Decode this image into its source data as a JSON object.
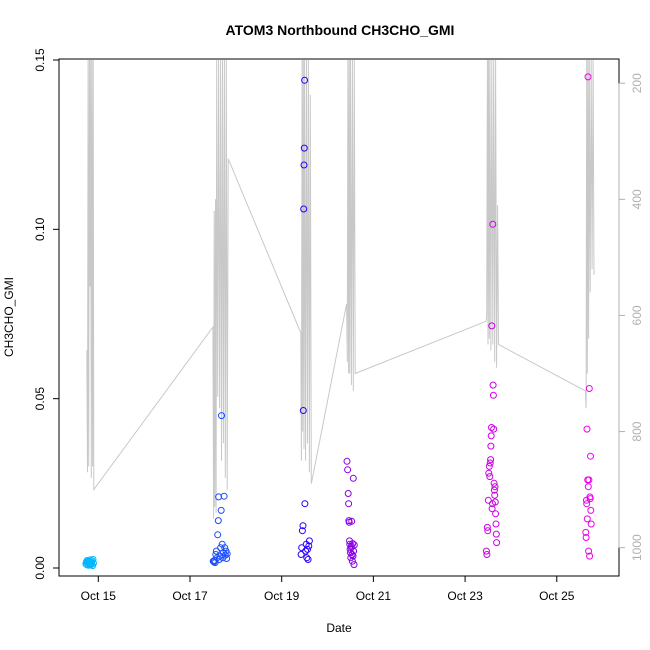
{
  "chart_data": {
    "type": "scatter",
    "title": "ATOM3 Northbound CH3CHO_GMI",
    "xlabel": "Date",
    "ylabel": "CH3CHO_GMI",
    "xlim": [
      "2017-10-14 05:00",
      "2017-10-26 07:00"
    ],
    "ylim": [
      0.0,
      0.15
    ],
    "x_ticks": [
      {
        "label": "Oct 15",
        "value": "2017-10-15"
      },
      {
        "label": "Oct 17",
        "value": "2017-10-17"
      },
      {
        "label": "Oct 19",
        "value": "2017-10-19"
      },
      {
        "label": "Oct 21",
        "value": "2017-10-21"
      },
      {
        "label": "Oct 23",
        "value": "2017-10-23"
      },
      {
        "label": "Oct 25",
        "value": "2017-10-25"
      }
    ],
    "y_ticks": [
      {
        "label": "0.00",
        "value": 0.0
      },
      {
        "label": "0.05",
        "value": 0.05
      },
      {
        "label": "0.10",
        "value": 0.1
      },
      {
        "label": "0.15",
        "value": 0.15
      }
    ],
    "secondary_axis": {
      "position": "right",
      "label": "",
      "reversed": true,
      "range": [
        160,
        1035
      ],
      "ticks": [
        {
          "label": "200",
          "value": 200
        },
        {
          "label": "400",
          "value": 400
        },
        {
          "label": "600",
          "value": 600
        },
        {
          "label": "800",
          "value": 800
        },
        {
          "label": "1000",
          "value": 1000
        }
      ],
      "color": "#b0b0b0"
    },
    "pressure_trace": {
      "color": "#c8c8c8",
      "points": [
        [
          "2017-10-14 18:00",
          660
        ],
        [
          "2017-10-14 18:20",
          870
        ],
        [
          "2017-10-14 18:40",
          160
        ],
        [
          "2017-10-14 19:00",
          860
        ],
        [
          "2017-10-14 19:20",
          160
        ],
        [
          "2017-10-14 19:40",
          550
        ],
        [
          "2017-10-14 20:00",
          160
        ],
        [
          "2017-10-14 20:20",
          880
        ],
        [
          "2017-10-14 20:40",
          160
        ],
        [
          "2017-10-14 21:00",
          860
        ],
        [
          "2017-10-14 21:20",
          160
        ],
        [
          "2017-10-14 21:40",
          900
        ],
        [
          "2017-10-17 12:00",
          620
        ],
        [
          "2017-10-17 12:20",
          950
        ],
        [
          "2017-10-17 12:40",
          420
        ],
        [
          "2017-10-17 13:00",
          930
        ],
        [
          "2017-10-17 13:20",
          400
        ],
        [
          "2017-10-17 13:40",
          940
        ],
        [
          "2017-10-17 14:00",
          160
        ],
        [
          "2017-10-17 14:30",
          740
        ],
        [
          "2017-10-17 15:00",
          160
        ],
        [
          "2017-10-17 15:30",
          760
        ],
        [
          "2017-10-17 16:00",
          160
        ],
        [
          "2017-10-17 16:30",
          850
        ],
        [
          "2017-10-17 17:00",
          160
        ],
        [
          "2017-10-17 17:30",
          820
        ],
        [
          "2017-10-17 18:00",
          160
        ],
        [
          "2017-10-17 18:30",
          880
        ],
        [
          "2017-10-17 19:00",
          160
        ],
        [
          "2017-10-17 19:30",
          900
        ],
        [
          "2017-10-17 20:00",
          330
        ],
        [
          "2017-10-19 10:00",
          630
        ],
        [
          "2017-10-19 10:20",
          850
        ],
        [
          "2017-10-19 10:40",
          160
        ],
        [
          "2017-10-19 11:00",
          800
        ],
        [
          "2017-10-19 11:20",
          160
        ],
        [
          "2017-10-19 11:40",
          830
        ],
        [
          "2017-10-19 12:00",
          160
        ],
        [
          "2017-10-19 12:30",
          850
        ],
        [
          "2017-10-19 13:00",
          160
        ],
        [
          "2017-10-19 13:30",
          820
        ],
        [
          "2017-10-19 14:00",
          160
        ],
        [
          "2017-10-19 14:30",
          870
        ],
        [
          "2017-10-19 15:00",
          220
        ],
        [
          "2017-10-19 15:30",
          890
        ],
        [
          "2017-10-20 10:00",
          580
        ],
        [
          "2017-10-20 10:20",
          680
        ],
        [
          "2017-10-20 10:40",
          160
        ],
        [
          "2017-10-20 11:00",
          700
        ],
        [
          "2017-10-20 11:20",
          160
        ],
        [
          "2017-10-20 11:40",
          700
        ],
        [
          "2017-10-20 12:00",
          160
        ],
        [
          "2017-10-20 12:30",
          720
        ],
        [
          "2017-10-20 13:00",
          160
        ],
        [
          "2017-10-20 13:30",
          730
        ],
        [
          "2017-10-20 14:00",
          160
        ],
        [
          "2017-10-20 14:30",
          700
        ],
        [
          "2017-10-23 11:00",
          610
        ],
        [
          "2017-10-23 11:20",
          600
        ],
        [
          "2017-10-23 11:40",
          160
        ],
        [
          "2017-10-23 12:00",
          650
        ],
        [
          "2017-10-23 12:20",
          160
        ],
        [
          "2017-10-23 12:40",
          640
        ],
        [
          "2017-10-23 13:00",
          160
        ],
        [
          "2017-10-23 13:30",
          660
        ],
        [
          "2017-10-23 14:00",
          160
        ],
        [
          "2017-10-23 14:30",
          650
        ],
        [
          "2017-10-23 15:00",
          160
        ],
        [
          "2017-10-23 15:30",
          680
        ],
        [
          "2017-10-23 16:00",
          160
        ],
        [
          "2017-10-23 16:30",
          690
        ],
        [
          "2017-10-23 17:00",
          410
        ],
        [
          "2017-10-23 17:30",
          650
        ],
        [
          "2017-10-25 15:00",
          730
        ],
        [
          "2017-10-25 15:20",
          760
        ],
        [
          "2017-10-25 15:40",
          160
        ],
        [
          "2017-10-25 16:00",
          700
        ],
        [
          "2017-10-25 16:20",
          160
        ],
        [
          "2017-10-25 16:40",
          640
        ],
        [
          "2017-10-25 17:00",
          160
        ],
        [
          "2017-10-25 17:30",
          560
        ],
        [
          "2017-10-25 18:00",
          160
        ],
        [
          "2017-10-25 18:30",
          520
        ],
        [
          "2017-10-25 19:00",
          160
        ],
        [
          "2017-10-25 19:30",
          530
        ]
      ]
    },
    "point_colors": {
      "2017-10-14": "#00b7ff",
      "2017-10-17": "#1a4dff",
      "2017-10-19": "#2a00ff",
      "2017-10-20": "#8800e6",
      "2017-10-23": "#cc00e6",
      "2017-10-25": "#ee00ee"
    },
    "series": [
      {
        "flight": "2017-10-14",
        "points": [
          [
            "2017-10-14 17:30",
            0.0012
          ],
          [
            "2017-10-14 17:45",
            0.0018
          ],
          [
            "2017-10-14 18:00",
            0.001
          ],
          [
            "2017-10-14 18:10",
            0.0022
          ],
          [
            "2017-10-14 18:20",
            0.0016
          ],
          [
            "2017-10-14 18:30",
            0.002
          ],
          [
            "2017-10-14 18:45",
            0.0008
          ],
          [
            "2017-10-14 19:00",
            0.0015
          ],
          [
            "2017-10-14 19:15",
            0.0019
          ],
          [
            "2017-10-14 19:30",
            0.0011
          ],
          [
            "2017-10-14 19:45",
            0.0024
          ],
          [
            "2017-10-14 20:00",
            0.0009
          ],
          [
            "2017-10-14 20:15",
            0.0017
          ],
          [
            "2017-10-14 20:30",
            0.0013
          ],
          [
            "2017-10-14 20:45",
            0.0021
          ],
          [
            "2017-10-14 21:00",
            0.0007
          ],
          [
            "2017-10-14 21:15",
            0.0025
          ],
          [
            "2017-10-14 21:30",
            0.0014
          ]
        ]
      },
      {
        "flight": "2017-10-17",
        "points": [
          [
            "2017-10-17 12:10",
            0.002
          ],
          [
            "2017-10-17 12:30",
            0.0018
          ],
          [
            "2017-10-17 12:50",
            0.0022
          ],
          [
            "2017-10-17 13:10",
            0.0016
          ],
          [
            "2017-10-17 13:30",
            0.004
          ],
          [
            "2017-10-17 13:50",
            0.005
          ],
          [
            "2017-10-17 14:10",
            0.003
          ],
          [
            "2017-10-17 14:30",
            0.0098
          ],
          [
            "2017-10-17 14:50",
            0.014
          ],
          [
            "2017-10-17 15:00",
            0.021
          ],
          [
            "2017-10-17 15:20",
            0.0025
          ],
          [
            "2017-10-17 15:40",
            0.0035
          ],
          [
            "2017-10-17 16:00",
            0.006
          ],
          [
            "2017-10-17 16:20",
            0.017
          ],
          [
            "2017-10-17 16:30",
            0.045
          ],
          [
            "2017-10-17 16:50",
            0.007
          ],
          [
            "2017-10-17 17:10",
            0.003
          ],
          [
            "2017-10-17 17:30",
            0.0045
          ],
          [
            "2017-10-17 17:50",
            0.0212
          ],
          [
            "2017-10-17 18:10",
            0.006
          ],
          [
            "2017-10-17 18:30",
            0.0038
          ],
          [
            "2017-10-17 18:50",
            0.005
          ],
          [
            "2017-10-17 19:10",
            0.0028
          ],
          [
            "2017-10-17 19:30",
            0.0042
          ]
        ]
      },
      {
        "flight": "2017-10-19",
        "points": [
          [
            "2017-10-19 10:10",
            0.004
          ],
          [
            "2017-10-19 10:30",
            0.006
          ],
          [
            "2017-10-19 10:50",
            0.011
          ],
          [
            "2017-10-19 11:10",
            0.0125
          ],
          [
            "2017-10-19 11:20",
            0.0465
          ],
          [
            "2017-10-19 11:30",
            0.106
          ],
          [
            "2017-10-19 11:40",
            0.119
          ],
          [
            "2017-10-19 11:50",
            0.124
          ],
          [
            "2017-10-19 12:00",
            0.144
          ],
          [
            "2017-10-19 12:10",
            0.019
          ],
          [
            "2017-10-19 12:30",
            0.005
          ],
          [
            "2017-10-19 12:50",
            0.007
          ],
          [
            "2017-10-19 13:10",
            0.003
          ],
          [
            "2017-10-19 13:30",
            0.0055
          ],
          [
            "2017-10-19 13:50",
            0.0025
          ],
          [
            "2017-10-19 14:10",
            0.0065
          ],
          [
            "2017-10-19 14:30",
            0.008
          ]
        ]
      },
      {
        "flight": "2017-10-20",
        "points": [
          [
            "2017-10-20 10:10",
            0.0315
          ],
          [
            "2017-10-20 10:30",
            0.029
          ],
          [
            "2017-10-20 10:50",
            0.022
          ],
          [
            "2017-10-20 11:00",
            0.019
          ],
          [
            "2017-10-20 11:10",
            0.014
          ],
          [
            "2017-10-20 11:20",
            0.0135
          ],
          [
            "2017-10-20 11:30",
            0.008
          ],
          [
            "2017-10-20 11:40",
            0.007
          ],
          [
            "2017-10-20 11:50",
            0.0055
          ],
          [
            "2017-10-20 12:00",
            0.0045
          ],
          [
            "2017-10-20 12:10",
            0.003
          ],
          [
            "2017-10-20 12:20",
            0.006
          ],
          [
            "2017-10-20 12:30",
            0.0065
          ],
          [
            "2017-10-20 12:40",
            0.0138
          ],
          [
            "2017-10-20 12:50",
            0.004
          ],
          [
            "2017-10-20 13:00",
            0.002
          ],
          [
            "2017-10-20 13:10",
            0.0072
          ],
          [
            "2017-10-20 13:20",
            0.0035
          ],
          [
            "2017-10-20 13:30",
            0.0265
          ],
          [
            "2017-10-20 13:40",
            0.005
          ],
          [
            "2017-10-20 13:50",
            0.001
          ],
          [
            "2017-10-20 14:00",
            0.0068
          ]
        ]
      },
      {
        "flight": "2017-10-23",
        "points": [
          [
            "2017-10-23 11:10",
            0.005
          ],
          [
            "2017-10-23 11:25",
            0.004
          ],
          [
            "2017-10-23 11:40",
            0.012
          ],
          [
            "2017-10-23 11:55",
            0.011
          ],
          [
            "2017-10-23 12:10",
            0.02
          ],
          [
            "2017-10-23 12:25",
            0.028
          ],
          [
            "2017-10-23 12:40",
            0.03
          ],
          [
            "2017-10-23 12:55",
            0.027
          ],
          [
            "2017-10-23 13:10",
            0.031
          ],
          [
            "2017-10-23 13:20",
            0.032
          ],
          [
            "2017-10-23 13:30",
            0.036
          ],
          [
            "2017-10-23 13:40",
            0.039
          ],
          [
            "2017-10-23 13:50",
            0.0415
          ],
          [
            "2017-10-23 14:00",
            0.0715
          ],
          [
            "2017-10-23 14:10",
            0.0175
          ],
          [
            "2017-10-23 14:20",
            0.019
          ],
          [
            "2017-10-23 14:30",
            0.1015
          ],
          [
            "2017-10-23 14:40",
            0.054
          ],
          [
            "2017-10-23 14:50",
            0.051
          ],
          [
            "2017-10-23 15:00",
            0.041
          ],
          [
            "2017-10-23 15:10",
            0.025
          ],
          [
            "2017-10-23 15:20",
            0.023
          ],
          [
            "2017-10-23 15:30",
            0.0215
          ],
          [
            "2017-10-23 15:40",
            0.024
          ],
          [
            "2017-10-23 15:50",
            0.0195
          ],
          [
            "2017-10-23 16:00",
            0.016
          ],
          [
            "2017-10-23 16:10",
            0.013
          ],
          [
            "2017-10-23 16:20",
            0.01
          ],
          [
            "2017-10-23 16:30",
            0.0075
          ]
        ]
      },
      {
        "flight": "2017-10-25",
        "points": [
          [
            "2017-10-25 15:10",
            0.0105
          ],
          [
            "2017-10-25 15:20",
            0.009
          ],
          [
            "2017-10-25 15:30",
            0.02
          ],
          [
            "2017-10-25 15:40",
            0.019
          ],
          [
            "2017-10-25 15:50",
            0.041
          ],
          [
            "2017-10-25 16:00",
            0.0145
          ],
          [
            "2017-10-25 16:10",
            0.026
          ],
          [
            "2017-10-25 16:20",
            0.145
          ],
          [
            "2017-10-25 16:30",
            0.024
          ],
          [
            "2017-10-25 16:40",
            0.005
          ],
          [
            "2017-10-25 16:50",
            0.026
          ],
          [
            "2017-10-25 17:00",
            0.053
          ],
          [
            "2017-10-25 17:10",
            0.0035
          ],
          [
            "2017-10-25 17:20",
            0.021
          ],
          [
            "2017-10-25 17:30",
            0.0205
          ],
          [
            "2017-10-25 17:40",
            0.033
          ],
          [
            "2017-10-25 17:50",
            0.017
          ],
          [
            "2017-10-25 18:00",
            0.013
          ]
        ]
      }
    ]
  }
}
